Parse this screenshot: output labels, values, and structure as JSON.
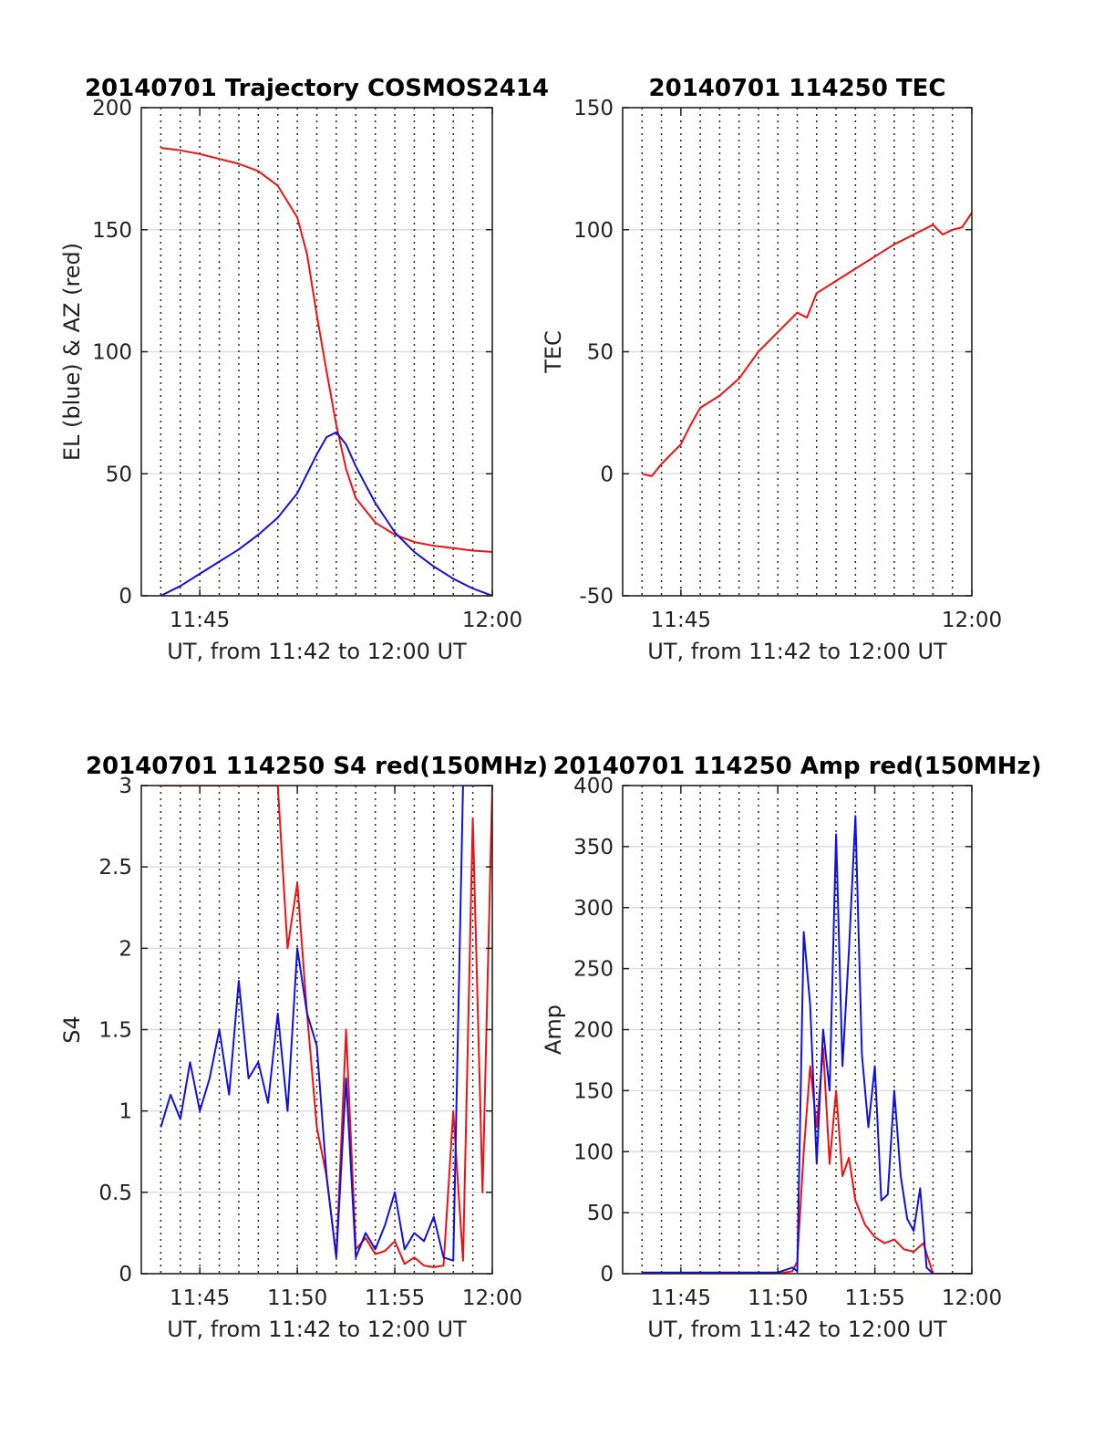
{
  "figure": {
    "panels": [
      {
        "title": "20140701 Trajectory COSMOS2414"
      },
      {
        "title": "20140701 114250 TEC"
      },
      {
        "title": "20140701 114250 S4 red(150MHz)"
      },
      {
        "title": "20140701 114250 Amp red(150MHz)"
      }
    ]
  },
  "chart_data": [
    {
      "type": "line",
      "title": "20140701 Trajectory COSMOS2414",
      "xlabel": "UT, from 11:42 to 12:00 UT",
      "ylabel": "EL (blue) & AZ (red)",
      "xlim": [
        "11:42",
        "12:00"
      ],
      "ylim": [
        0,
        200
      ],
      "xticks": [
        "11:45",
        "12:00"
      ],
      "yticks": [
        0,
        50,
        100,
        150,
        200
      ],
      "grid": true,
      "colors": {
        "red": "#ee1111",
        "blue": "#1111dd"
      },
      "series": [
        {
          "color": "red",
          "x": [
            "11:43",
            "11:44",
            "11:45",
            "11:46",
            "11:47",
            "11:48",
            "11:49",
            "11:50",
            "11:50:30",
            "11:51",
            "11:51:30",
            "11:52",
            "11:52:30",
            "11:53",
            "11:54",
            "11:55",
            "11:56",
            "11:57",
            "11:58",
            "11:59",
            "12:00"
          ],
          "y": [
            183.5,
            182.5,
            181,
            179,
            177,
            174,
            168,
            155,
            140,
            115,
            92,
            70,
            52,
            40,
            30,
            25,
            22,
            20.5,
            19.5,
            18.5,
            18
          ]
        },
        {
          "color": "blue",
          "x": [
            "11:43",
            "11:44",
            "11:45",
            "11:46",
            "11:47",
            "11:48",
            "11:49",
            "11:50",
            "11:50:30",
            "11:51",
            "11:51:30",
            "11:52",
            "11:52:30",
            "11:53",
            "11:54",
            "11:55",
            "11:56",
            "11:57",
            "11:58",
            "11:59",
            "12:00"
          ],
          "y": [
            0,
            4,
            9,
            14,
            19,
            25,
            32,
            42,
            50,
            58,
            65,
            67,
            62,
            53,
            38,
            26,
            18,
            12,
            7,
            3,
            0
          ]
        }
      ]
    },
    {
      "type": "line",
      "title": "20140701 114250 TEC",
      "xlabel": "UT, from 11:42 to 12:00 UT",
      "ylabel": "TEC",
      "xlim": [
        "11:42",
        "12:00"
      ],
      "ylim": [
        -50,
        150
      ],
      "xticks": [
        "11:45",
        "12:00"
      ],
      "yticks": [
        -50,
        0,
        50,
        100,
        150
      ],
      "grid": true,
      "colors": {
        "red": "#ee1111"
      },
      "series": [
        {
          "color": "red",
          "x": [
            "11:43",
            "11:43:30",
            "11:44",
            "11:45",
            "11:45:30",
            "11:46",
            "11:47",
            "11:48",
            "11:49",
            "11:50",
            "11:51",
            "11:51:30",
            "11:52",
            "11:53",
            "11:54",
            "11:55",
            "11:56",
            "11:57",
            "11:58",
            "11:58:30",
            "11:59",
            "11:59:30",
            "12:00"
          ],
          "y": [
            0,
            -1,
            4,
            12,
            20,
            27,
            32,
            39,
            50,
            58,
            66,
            64,
            74,
            79,
            84,
            89,
            94,
            98,
            102,
            98,
            100,
            101,
            107
          ]
        }
      ]
    },
    {
      "type": "line",
      "title": "20140701 114250 S4 red(150MHz)",
      "xlabel": "UT, from 11:42 to 12:00 UT",
      "ylabel": "S4",
      "xlim": [
        "11:42",
        "12:00"
      ],
      "ylim": [
        0,
        3
      ],
      "xticks": [
        "11:45",
        "11:50",
        "11:55",
        "12:00"
      ],
      "yticks": [
        0,
        0.5,
        1,
        1.5,
        2,
        2.5,
        3
      ],
      "grid": true,
      "colors": {
        "red": "#ee1111",
        "blue": "#1111dd"
      },
      "series": [
        {
          "color": "red",
          "x": [
            "11:43",
            "11:44",
            "11:45",
            "11:46",
            "11:47",
            "11:48",
            "11:49",
            "11:49:30",
            "11:50",
            "11:50:30",
            "11:51",
            "11:51:30",
            "11:52",
            "11:52:30",
            "11:53",
            "11:53:30",
            "11:54",
            "11:54:30",
            "11:55",
            "11:55:30",
            "11:56",
            "11:56:30",
            "11:57",
            "11:57:30",
            "11:58",
            "11:58:30",
            "11:59",
            "11:59:30",
            "12:00"
          ],
          "y": [
            3,
            3,
            3,
            3,
            3,
            3,
            3,
            2.0,
            2.4,
            1.6,
            0.9,
            0.6,
            0.1,
            1.5,
            0.15,
            0.22,
            0.12,
            0.14,
            0.2,
            0.06,
            0.1,
            0.05,
            0.04,
            0.05,
            1.0,
            0.08,
            2.8,
            0.5,
            3
          ]
        },
        {
          "color": "blue",
          "x": [
            "11:43",
            "11:43:30",
            "11:44",
            "11:44:30",
            "11:45",
            "11:45:30",
            "11:46",
            "11:46:30",
            "11:47",
            "11:47:30",
            "11:48",
            "11:48:30",
            "11:49",
            "11:49:30",
            "11:50",
            "11:50:30",
            "11:51",
            "11:51:30",
            "11:52",
            "11:52:30",
            "11:53",
            "11:53:30",
            "11:54",
            "11:54:30",
            "11:55",
            "11:55:30",
            "11:56",
            "11:56:30",
            "11:57",
            "11:57:30",
            "11:58",
            "11:58:30",
            "11:59",
            "11:59:30",
            "12:00"
          ],
          "y": [
            0.9,
            1.1,
            0.95,
            1.3,
            1.0,
            1.2,
            1.5,
            1.1,
            1.8,
            1.2,
            1.3,
            1.05,
            1.6,
            1.0,
            2.0,
            1.6,
            1.4,
            0.6,
            0.1,
            1.2,
            0.1,
            0.25,
            0.15,
            0.3,
            0.5,
            0.15,
            0.25,
            0.2,
            0.35,
            0.1,
            0.08,
            3,
            3,
            3,
            3
          ]
        }
      ]
    },
    {
      "type": "line",
      "title": "20140701 114250 Amp red(150MHz)",
      "xlabel": "UT, from 11:42 to 12:00 UT",
      "ylabel": "Amp",
      "xlim": [
        "11:42",
        "12:00"
      ],
      "ylim": [
        0,
        400
      ],
      "xticks": [
        "11:45",
        "11:50",
        "11:55",
        "12:00"
      ],
      "yticks": [
        0,
        50,
        100,
        150,
        200,
        250,
        300,
        350,
        400
      ],
      "grid": true,
      "colors": {
        "red": "#ee1111",
        "blue": "#1111dd"
      },
      "series": [
        {
          "color": "red",
          "x": [
            "11:43",
            "11:45",
            "11:47",
            "11:49",
            "11:50",
            "11:50:45",
            "11:51",
            "11:51:20",
            "11:51:40",
            "11:52",
            "11:52:20",
            "11:52:40",
            "11:53",
            "11:53:20",
            "11:53:40",
            "11:54",
            "11:54:30",
            "11:55",
            "11:55:30",
            "11:56",
            "11:56:30",
            "11:57",
            "11:57:30",
            "11:58",
            "11:59",
            "12:00"
          ],
          "y": [
            0,
            0,
            0,
            0,
            0,
            2,
            10,
            100,
            170,
            120,
            185,
            90,
            150,
            80,
            95,
            60,
            40,
            30,
            25,
            28,
            20,
            18,
            25,
            0,
            0,
            0
          ]
        },
        {
          "color": "blue",
          "x": [
            "11:43",
            "11:45",
            "11:47",
            "11:49",
            "11:50",
            "11:50:45",
            "11:51",
            "11:51:20",
            "11:51:40",
            "11:52",
            "11:52:20",
            "11:52:40",
            "11:53",
            "11:53:20",
            "11:53:40",
            "11:54",
            "11:54:20",
            "11:54:40",
            "11:55",
            "11:55:20",
            "11:55:40",
            "11:56",
            "11:56:20",
            "11:56:40",
            "11:57",
            "11:57:20",
            "11:57:40",
            "11:58",
            "11:59",
            "12:00"
          ],
          "y": [
            1,
            1,
            1,
            1,
            1,
            5,
            2,
            280,
            220,
            90,
            200,
            150,
            360,
            170,
            265,
            375,
            180,
            120,
            170,
            60,
            65,
            150,
            80,
            45,
            35,
            70,
            5,
            0,
            0,
            0
          ]
        }
      ]
    }
  ]
}
